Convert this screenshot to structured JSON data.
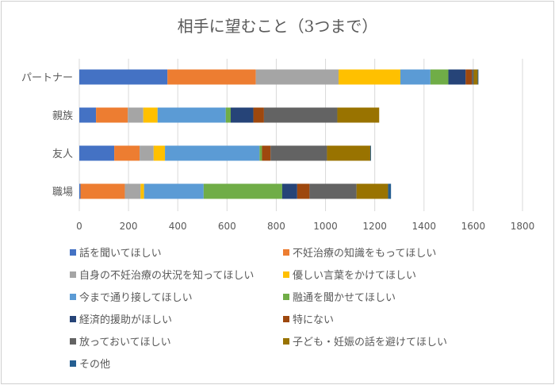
{
  "chart_data": {
    "type": "bar",
    "orientation": "horizontal",
    "stacked": true,
    "title": "相手に望むこと（3つまで）",
    "categories": [
      "パートナー",
      "親族",
      "友人",
      "職場"
    ],
    "xlim": [
      0,
      1800
    ],
    "xticks": [
      0,
      200,
      400,
      600,
      800,
      1000,
      1200,
      1400,
      1600,
      1800
    ],
    "grid": true,
    "legend_position": "bottom",
    "series": [
      {
        "name": "話を聞いてほしい",
        "color": "#4472C4",
        "values": [
          358,
          68,
          142,
          5
        ]
      },
      {
        "name": "不妊治療の知識をもってほしい",
        "color": "#ED7D31",
        "values": [
          359,
          129,
          103,
          180
        ]
      },
      {
        "name": "自身の不妊治療の状況を知ってほしい",
        "color": "#A5A5A5",
        "values": [
          336,
          63,
          57,
          64
        ]
      },
      {
        "name": "優しい言葉をかけてほしい",
        "color": "#FFC000",
        "values": [
          251,
          58,
          46,
          14
        ]
      },
      {
        "name": "今まで通り接してほしい",
        "color": "#5B9BD5",
        "values": [
          122,
          277,
          384,
          242
        ]
      },
      {
        "name": "融通を聞かせてほしい",
        "color": "#70AD47",
        "values": [
          73,
          20,
          10,
          319
        ]
      },
      {
        "name": "経済的援助がほしい",
        "color": "#264478",
        "values": [
          70,
          92,
          0,
          61
        ]
      },
      {
        "name": "特にない",
        "color": "#9E480E",
        "values": [
          25,
          43,
          35,
          50
        ]
      },
      {
        "name": "放っておいてほしい",
        "color": "#636363",
        "values": [
          8,
          298,
          229,
          191
        ]
      },
      {
        "name": "子ども・妊娠の話を避けてほしい",
        "color": "#997300",
        "values": [
          16,
          170,
          176,
          128
        ]
      },
      {
        "name": "その他",
        "color": "#255E91",
        "values": [
          3,
          0,
          3,
          12
        ]
      }
    ]
  }
}
